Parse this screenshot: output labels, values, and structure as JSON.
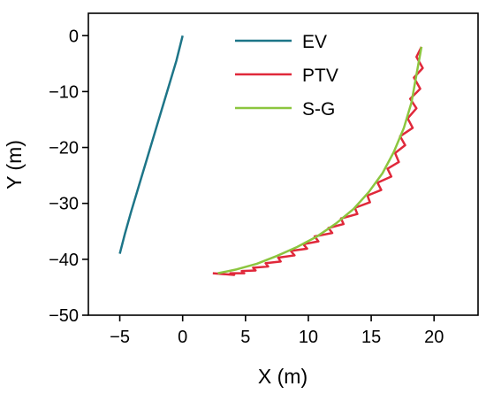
{
  "chart_data": {
    "type": "line",
    "title": "",
    "xlabel": "X (m)",
    "ylabel": "Y (m)",
    "xlim": [
      -7.5,
      23.5
    ],
    "ylim": [
      -50,
      4
    ],
    "xticks": [
      -5,
      0,
      5,
      10,
      15,
      20
    ],
    "yticks": [
      0,
      -10,
      -20,
      -30,
      -40,
      -50
    ],
    "xtick_labels": [
      "−5",
      "0",
      "5",
      "10",
      "15",
      "20"
    ],
    "ytick_labels": [
      "0",
      "−10",
      "−20",
      "−30",
      "−40",
      "−50"
    ],
    "grid": false,
    "legend_position": "top-center",
    "series": [
      {
        "name": "EV",
        "color": "#1d7588",
        "x": [
          0.0,
          -0.5,
          -1.1,
          -1.7,
          -2.3,
          -2.9,
          -3.5,
          -4.1,
          -4.6,
          -5.0
        ],
        "y": [
          0.0,
          -4.5,
          -9.0,
          -13.5,
          -18.0,
          -22.5,
          -27.0,
          -31.5,
          -35.5,
          -39.0
        ]
      },
      {
        "name": "PTV",
        "color": "#e0283a",
        "x": [
          19.0,
          18.6,
          19.1,
          18.4,
          18.9,
          18.1,
          18.6,
          17.9,
          18.3,
          17.3,
          17.7,
          16.9,
          17.2,
          16.3,
          16.6,
          15.5,
          15.8,
          14.7,
          14.9,
          13.7,
          13.9,
          12.6,
          12.8,
          11.6,
          11.9,
          10.5,
          10.8,
          9.6,
          9.9,
          8.6,
          8.9,
          7.6,
          7.8,
          6.6,
          6.8,
          5.6,
          5.8,
          4.7,
          4.9,
          3.8,
          4.1,
          2.4
        ],
        "y": [
          -2.0,
          -3.8,
          -5.8,
          -7.5,
          -9.5,
          -11.3,
          -13.0,
          -14.8,
          -16.5,
          -18.0,
          -19.6,
          -21.0,
          -22.6,
          -23.8,
          -25.2,
          -26.3,
          -27.6,
          -28.6,
          -29.8,
          -30.8,
          -31.9,
          -32.7,
          -33.7,
          -34.4,
          -35.3,
          -35.9,
          -36.8,
          -37.3,
          -38.1,
          -38.5,
          -39.3,
          -39.7,
          -40.4,
          -40.7,
          -41.3,
          -41.5,
          -42.0,
          -42.1,
          -42.5,
          -42.5,
          -42.8,
          -42.5
        ]
      },
      {
        "name": "S-G",
        "color": "#8cc63f",
        "x": [
          19.0,
          18.6,
          18.2,
          17.6,
          16.8,
          15.9,
          14.8,
          13.6,
          12.2,
          10.7,
          9.1,
          7.5,
          5.9,
          4.3,
          2.8
        ],
        "y": [
          -2.0,
          -7.0,
          -12.0,
          -16.5,
          -20.8,
          -24.6,
          -28.0,
          -31.0,
          -33.6,
          -35.9,
          -37.8,
          -39.4,
          -40.8,
          -41.8,
          -42.5
        ]
      }
    ]
  }
}
